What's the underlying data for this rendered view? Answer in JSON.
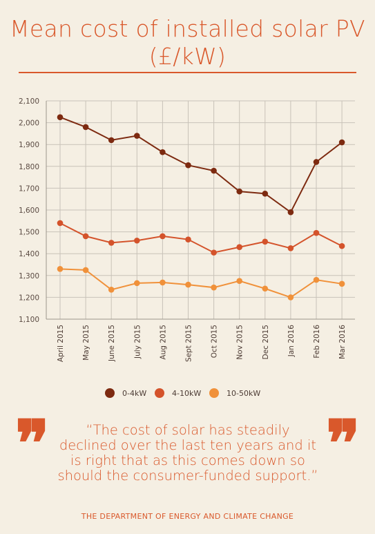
{
  "header": {
    "title_line1": "Mean cost of installed solar PV",
    "title_line2": "(£/kW)"
  },
  "chart_data": {
    "type": "line",
    "title": "Mean cost of installed solar PV (£/kW)",
    "xlabel": "",
    "ylabel": "",
    "ylim": [
      1100,
      2100
    ],
    "yticks": [
      "1,100",
      "1,200",
      "1,300",
      "1,400",
      "1,500",
      "1,600",
      "1,700",
      "1,800",
      "1,900",
      "2,000",
      "2,100"
    ],
    "grid": true,
    "legend_position": "bottom",
    "categories": [
      "April 2015",
      "May 2015",
      "June 2015",
      "July 2015",
      "Aug 2015",
      "Sept 2015",
      "Oct 2015",
      "Nov 2015",
      "Dec 2015",
      "Jan 2016",
      "Feb 2016",
      "Mar 2016"
    ],
    "series": [
      {
        "name": "0-4kW",
        "color": "#7d2a10",
        "values": [
          2025,
          1980,
          1920,
          1940,
          1865,
          1805,
          1780,
          1685,
          1675,
          1590,
          1820,
          1910
        ]
      },
      {
        "name": "4-10kW",
        "color": "#d4532b",
        "values": [
          1540,
          1480,
          1450,
          1460,
          1480,
          1465,
          1405,
          1430,
          1455,
          1425,
          1495,
          1435
        ]
      },
      {
        "name": "10-50kW",
        "color": "#f0913a",
        "values": [
          1330,
          1325,
          1235,
          1265,
          1268,
          1258,
          1245,
          1275,
          1240,
          1200,
          1280,
          1262
        ]
      }
    ]
  },
  "quote": {
    "text": "“The cost of solar has steadily declined over the last ten years and it is right that as this comes down so should the consumer-funded support.”",
    "source": "THE DEPARTMENT OF ENERGY AND CLIMATE CHANGE",
    "open_mark": "❞",
    "close_mark": "❞"
  },
  "colors": {
    "accent": "#d9582b",
    "background": "#f5efe3",
    "grid": "#c8c2b8"
  }
}
